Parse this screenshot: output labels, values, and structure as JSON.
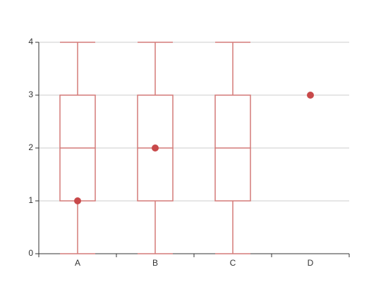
{
  "chart_data": {
    "type": "boxplot",
    "categories": [
      "A",
      "B",
      "C",
      "D"
    ],
    "boxes": {
      "color": "#d47a78",
      "min": [
        0,
        0,
        0,
        null
      ],
      "q1": [
        1,
        1,
        1,
        null
      ],
      "median": [
        2,
        2,
        2,
        null
      ],
      "q3": [
        3,
        3,
        3,
        null
      ],
      "max": [
        4,
        4,
        4,
        null
      ]
    },
    "points": {
      "color": "#c8494a",
      "values": [
        1,
        2,
        null,
        3
      ]
    },
    "ylim": [
      0,
      4
    ],
    "yticks": [
      0,
      1,
      2,
      3,
      4
    ],
    "grid": true
  }
}
